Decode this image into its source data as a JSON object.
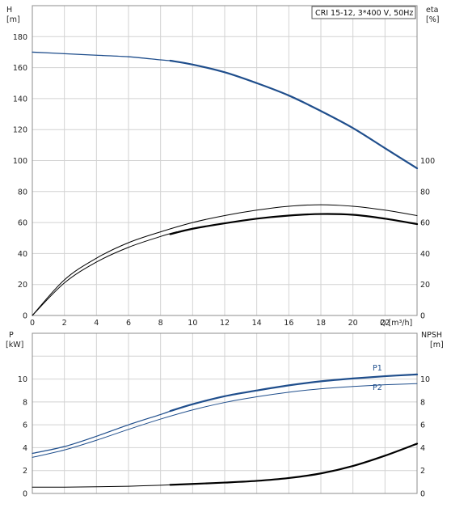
{
  "chart_data": [
    {
      "type": "line",
      "title": "CRI 15-12, 3*400 V, 50Hz",
      "y_left_label": "H",
      "y_left_unit": "[m]",
      "y_right_label": "eta",
      "y_right_unit": "[%]",
      "x_label": "Q [m³/h]",
      "xlim": [
        0,
        24
      ],
      "ylim_left": [
        0,
        200
      ],
      "ylim_right": [
        0,
        200
      ],
      "x_ticks": [
        "0",
        "2",
        "4",
        "6",
        "8",
        "10",
        "12",
        "14",
        "16",
        "18",
        "20",
        "22"
      ],
      "y_left_ticks": [
        "0",
        "20",
        "40",
        "60",
        "80",
        "100",
        "120",
        "140",
        "160",
        "180"
      ],
      "y_right_ticks": [
        "0",
        "20",
        "40",
        "60",
        "80",
        "100"
      ],
      "grid": true,
      "colors": {
        "head": "#1f4e8c",
        "eta": "#000000"
      },
      "series": [
        {
          "axis": "left",
          "color": "#1f4e8c",
          "width": 1.3,
          "values": [
            [
              0,
              170
            ],
            [
              2,
              169
            ],
            [
              4,
              168
            ],
            [
              6,
              167
            ],
            [
              8,
              165
            ],
            [
              8.6,
              164.5
            ]
          ]
        },
        {
          "axis": "left",
          "color": "#1f4e8c",
          "width": 2.2,
          "values": [
            [
              8.6,
              164.5
            ],
            [
              10,
              162
            ],
            [
              12,
              157
            ],
            [
              14,
              150
            ],
            [
              16,
              142
            ],
            [
              18,
              132
            ],
            [
              20,
              121
            ],
            [
              22,
              108
            ],
            [
              24,
              95
            ]
          ]
        },
        {
          "axis": "right",
          "color": "#000000",
          "width": 1.0,
          "values": [
            [
              0,
              0
            ],
            [
              2,
              23
            ],
            [
              4,
              37
            ],
            [
              6,
              47
            ],
            [
              8,
              54
            ],
            [
              10,
              60
            ],
            [
              12,
              64.5
            ],
            [
              14,
              68
            ],
            [
              16,
              70.5
            ],
            [
              18,
              71.5
            ],
            [
              20,
              70.5
            ],
            [
              22,
              68
            ],
            [
              24,
              64.5
            ]
          ]
        },
        {
          "axis": "right",
          "color": "#000000",
          "width": 1.0,
          "values": [
            [
              0,
              0
            ],
            [
              2,
              21
            ],
            [
              4,
              34.5
            ],
            [
              6,
              44
            ],
            [
              8,
              51
            ],
            [
              9,
              54
            ]
          ]
        },
        {
          "axis": "right",
          "color": "#000000",
          "width": 2.2,
          "values": [
            [
              8.6,
              52.5
            ],
            [
              10,
              56
            ],
            [
              12,
              59.5
            ],
            [
              14,
              62.5
            ],
            [
              16,
              64.5
            ],
            [
              18,
              65.5
            ],
            [
              20,
              65
            ],
            [
              22,
              62.5
            ],
            [
              24,
              59
            ]
          ]
        }
      ]
    },
    {
      "type": "line",
      "y_left_label": "P",
      "y_left_unit": "[kW]",
      "y_right_label": "NPSH",
      "y_right_unit": "[m]",
      "xlim": [
        0,
        24
      ],
      "ylim_left": [
        0,
        14
      ],
      "ylim_right": [
        0,
        14
      ],
      "y_left_ticks": [
        "0",
        "2",
        "4",
        "6",
        "8",
        "10"
      ],
      "y_right_ticks": [
        "0",
        "2",
        "4",
        "6",
        "8",
        "10"
      ],
      "grid": true,
      "colors": {
        "power": "#1f4e8c",
        "npsh": "#000000"
      },
      "series_labels": [
        "P1",
        "P2"
      ],
      "series": [
        {
          "name": "P1",
          "axis": "left",
          "color": "#1f4e8c",
          "width": 1.2,
          "values": [
            [
              0,
              3.5
            ],
            [
              2,
              4.1
            ],
            [
              4,
              5.0
            ],
            [
              6,
              6.0
            ],
            [
              8,
              6.9
            ],
            [
              8.6,
              7.2
            ]
          ]
        },
        {
          "name": "P1",
          "axis": "left",
          "color": "#1f4e8c",
          "width": 2.2,
          "values": [
            [
              8.6,
              7.2
            ],
            [
              10,
              7.8
            ],
            [
              12,
              8.5
            ],
            [
              14,
              9.0
            ],
            [
              16,
              9.45
            ],
            [
              18,
              9.8
            ],
            [
              20,
              10.05
            ],
            [
              22,
              10.25
            ],
            [
              24,
              10.4
            ]
          ]
        },
        {
          "name": "P2",
          "axis": "left",
          "color": "#1f4e8c",
          "width": 1.0,
          "values": [
            [
              0,
              3.15
            ],
            [
              2,
              3.8
            ],
            [
              4,
              4.65
            ],
            [
              6,
              5.6
            ],
            [
              8,
              6.5
            ],
            [
              10,
              7.3
            ],
            [
              12,
              7.95
            ],
            [
              14,
              8.45
            ],
            [
              16,
              8.85
            ],
            [
              18,
              9.15
            ],
            [
              20,
              9.35
            ],
            [
              22,
              9.5
            ],
            [
              24,
              9.6
            ]
          ]
        },
        {
          "axis": "right",
          "color": "#000000",
          "width": 1.0,
          "values": [
            [
              0,
              0.55
            ],
            [
              2,
              0.55
            ],
            [
              4,
              0.58
            ],
            [
              6,
              0.63
            ],
            [
              8,
              0.72
            ],
            [
              8.6,
              0.75
            ]
          ]
        },
        {
          "axis": "right",
          "color": "#000000",
          "width": 2.2,
          "values": [
            [
              8.6,
              0.75
            ],
            [
              10,
              0.83
            ],
            [
              12,
              0.95
            ],
            [
              14,
              1.1
            ],
            [
              16,
              1.35
            ],
            [
              18,
              1.75
            ],
            [
              20,
              2.4
            ],
            [
              22,
              3.3
            ],
            [
              24,
              4.35
            ]
          ]
        }
      ]
    }
  ]
}
